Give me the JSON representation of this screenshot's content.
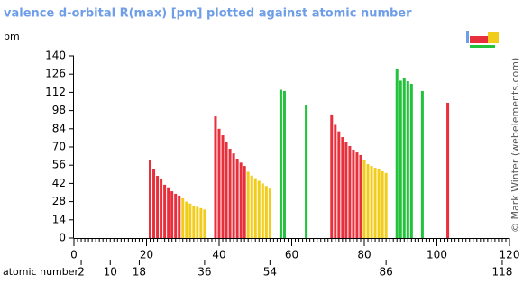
{
  "chart_data": {
    "type": "bar",
    "title": "valence d-orbital R(max) [pm] plotted against atomic number",
    "y_label": "pm",
    "x_label": "atomic number",
    "credit": "© Mark Winter (webelements.com)",
    "xlim": [
      0,
      120
    ],
    "xticks": [
      0,
      20,
      40,
      60,
      80,
      100,
      120
    ],
    "period_ticks": [
      2,
      10,
      18,
      36,
      54,
      86,
      118
    ],
    "ylim": [
      0,
      140
    ],
    "yticks": [
      0,
      14,
      28,
      42,
      56,
      70,
      84,
      98,
      112,
      126,
      140
    ],
    "series": [
      {
        "color": "#e8303c",
        "x": [
          21,
          22,
          23,
          24,
          25,
          26,
          27,
          28,
          29,
          39,
          40,
          41,
          42,
          43,
          44,
          45,
          46,
          47,
          71,
          72,
          73,
          74,
          75,
          76,
          77,
          78,
          79,
          103
        ],
        "values": [
          59.6,
          52.7,
          47.8,
          45.7,
          41,
          39,
          36,
          34,
          32.6,
          93.5,
          84,
          79,
          73.5,
          68.6,
          65,
          61,
          58,
          55.4,
          95,
          87,
          82,
          77.6,
          74,
          70.7,
          67.9,
          65.8,
          63.8,
          104
        ]
      },
      {
        "color": "#f2cc1a",
        "x": [
          30,
          31,
          32,
          33,
          34,
          35,
          36,
          48,
          49,
          50,
          51,
          52,
          53,
          54,
          80,
          81,
          82,
          83,
          84,
          85,
          86
        ],
        "values": [
          30.5,
          28,
          26.5,
          25,
          24,
          23,
          22,
          51,
          48,
          46,
          44,
          42,
          40,
          38,
          59.6,
          56.8,
          55.4,
          54,
          52.7,
          51.3,
          50
        ]
      },
      {
        "color": "#22c33a",
        "x": [
          57,
          58,
          64,
          89,
          90,
          91,
          92,
          93,
          96
        ],
        "values": [
          114,
          113,
          102,
          130,
          121,
          123,
          120.6,
          118.5,
          113
        ]
      }
    ]
  }
}
